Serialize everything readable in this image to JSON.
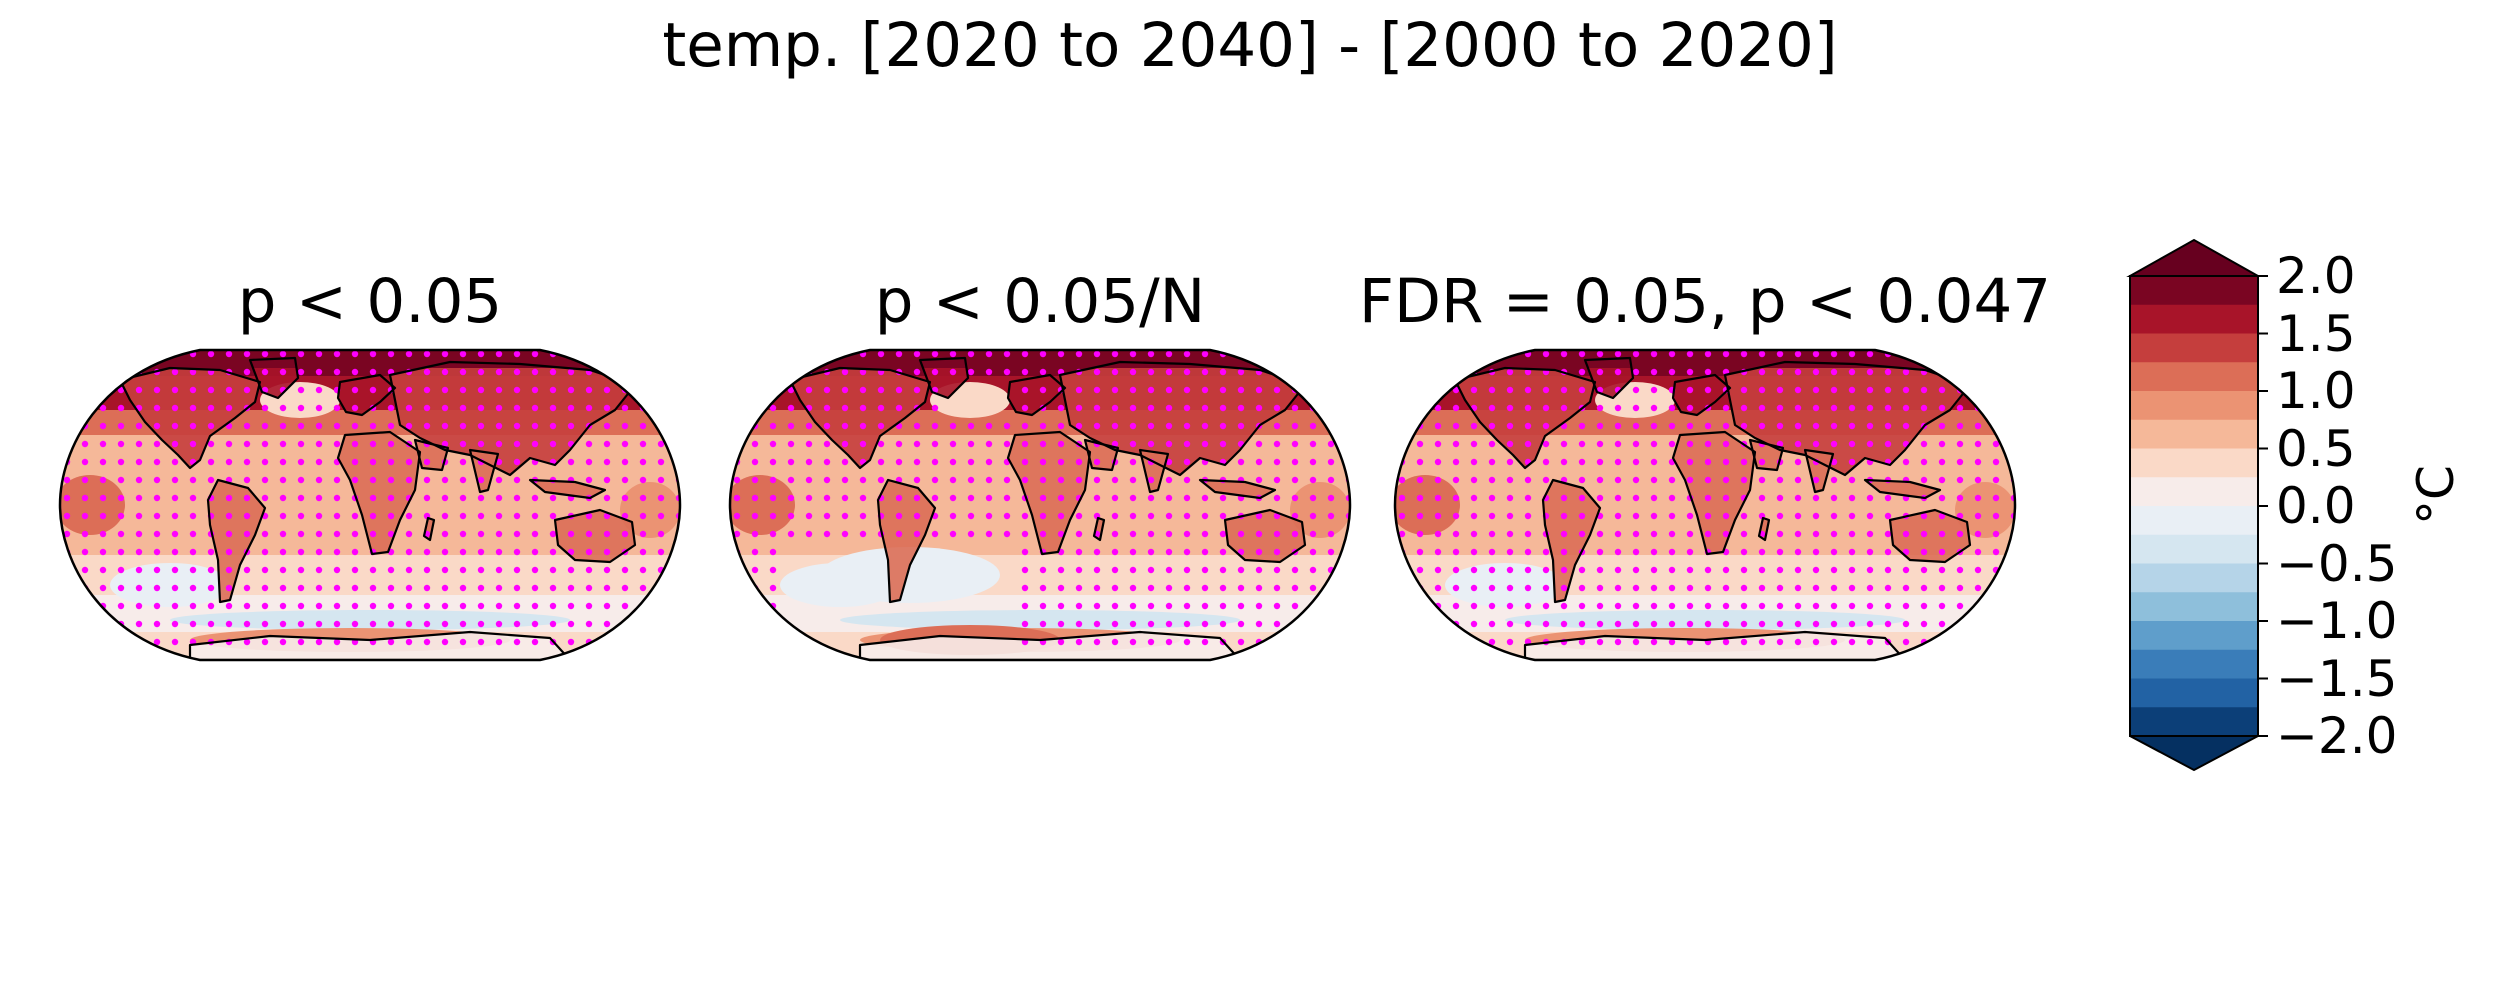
{
  "figure": {
    "title": "temp. [2020 to 2040] - [2000 to 2020]"
  },
  "panels": [
    {
      "id": "map-1",
      "title": "p < 0.05",
      "stipple_density": "full"
    },
    {
      "id": "map-2",
      "title": "p < 0.05/N",
      "stipple_density": "reduced"
    },
    {
      "id": "map-3",
      "title": "FDR = 0.05, p < 0.047",
      "stipple_density": "full"
    }
  ],
  "projection": "Robinson",
  "stipple_color": "#ff00ff",
  "coastline_color": "#000000",
  "colorbar": {
    "label": "°C",
    "cmap": "RdBu_r",
    "range": [
      -2.0,
      2.0
    ],
    "extend": "both",
    "levels": 16,
    "ticks": [
      "2.0",
      "1.5",
      "1.0",
      "0.5",
      "0.0",
      "−0.5",
      "−1.0",
      "−1.5",
      "−2.0"
    ],
    "colors_top_to_bottom": [
      "#7a0522",
      "#a81429",
      "#c53e3d",
      "#dc6e57",
      "#eb9373",
      "#f5b899",
      "#fad9c7",
      "#f7ecea",
      "#e9eff5",
      "#d5e6f0",
      "#b5d4e8",
      "#8ebfdb",
      "#5f9ecb",
      "#3a7db9",
      "#2262a4",
      "#0c3f78"
    ],
    "extend_top_color": "#67001f",
    "extend_bottom_color": "#053061"
  },
  "chart_data": {
    "type": "heatmap",
    "title": "temp. [2020 to 2040] - [2000 to 2020]",
    "subplots": [
      "p < 0.05",
      "p < 0.05/N",
      "FDR = 0.05, p < 0.047"
    ],
    "colorbar_label": "°C",
    "vmin": -2.0,
    "vmax": 2.0,
    "ticks": [
      -2.0,
      -1.5,
      -1.0,
      -0.5,
      0.0,
      0.5,
      1.0,
      1.5,
      2.0
    ]
  }
}
